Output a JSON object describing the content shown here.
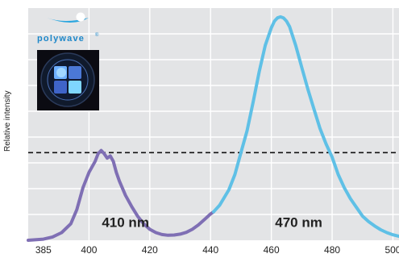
{
  "brand": {
    "name": "polywave",
    "trademark": "®"
  },
  "chart_data": {
    "type": "line",
    "ylabel": "Relative intensity",
    "xlim": [
      380,
      502
    ],
    "ylim": [
      0,
      1.06
    ],
    "x_ticks": [
      385,
      400,
      420,
      440,
      460,
      480,
      500
    ],
    "grid": true,
    "reference_line": {
      "y": 0.4,
      "style": "dashed"
    },
    "colors": {
      "violet": "#7f6fb4",
      "blue": "#5fc0e6",
      "plot_bg": "#e3e4e6",
      "grid": "#ffffff"
    },
    "annotations": [
      {
        "text": "410 nm",
        "x": 412,
        "y": 0.06
      },
      {
        "text": "470 nm",
        "x": 469,
        "y": 0.06
      }
    ],
    "series": [
      {
        "color": "#7f6fb4",
        "x": [
          380,
          385,
          388,
          391,
          394,
          396,
          398,
          400,
          402,
          403,
          404,
          405,
          406,
          407,
          408,
          409,
          410,
          412,
          414,
          416,
          418,
          420,
          422,
          424,
          426,
          428,
          430,
          432,
          434,
          436,
          438,
          440,
          441
        ],
        "y": [
          0.0,
          0.005,
          0.015,
          0.035,
          0.075,
          0.14,
          0.24,
          0.31,
          0.36,
          0.395,
          0.41,
          0.395,
          0.375,
          0.385,
          0.36,
          0.31,
          0.27,
          0.205,
          0.155,
          0.11,
          0.075,
          0.05,
          0.035,
          0.026,
          0.023,
          0.024,
          0.028,
          0.036,
          0.05,
          0.07,
          0.095,
          0.12,
          0.13
        ]
      },
      {
        "color": "#5fc0e6",
        "x": [
          441,
          443,
          446,
          448,
          450,
          452,
          454,
          456,
          458,
          460,
          461,
          462,
          463,
          464,
          465,
          466,
          468,
          470,
          472,
          474,
          476,
          478,
          480,
          482,
          484,
          486,
          488,
          490,
          492,
          494,
          496,
          498,
          500,
          502
        ],
        "y": [
          0.13,
          0.16,
          0.23,
          0.3,
          0.4,
          0.5,
          0.63,
          0.77,
          0.89,
          0.97,
          1.0,
          1.015,
          1.02,
          1.015,
          1.0,
          0.975,
          0.89,
          0.79,
          0.69,
          0.6,
          0.51,
          0.44,
          0.38,
          0.3,
          0.24,
          0.19,
          0.15,
          0.11,
          0.085,
          0.065,
          0.048,
          0.035,
          0.025,
          0.018
        ]
      }
    ]
  }
}
